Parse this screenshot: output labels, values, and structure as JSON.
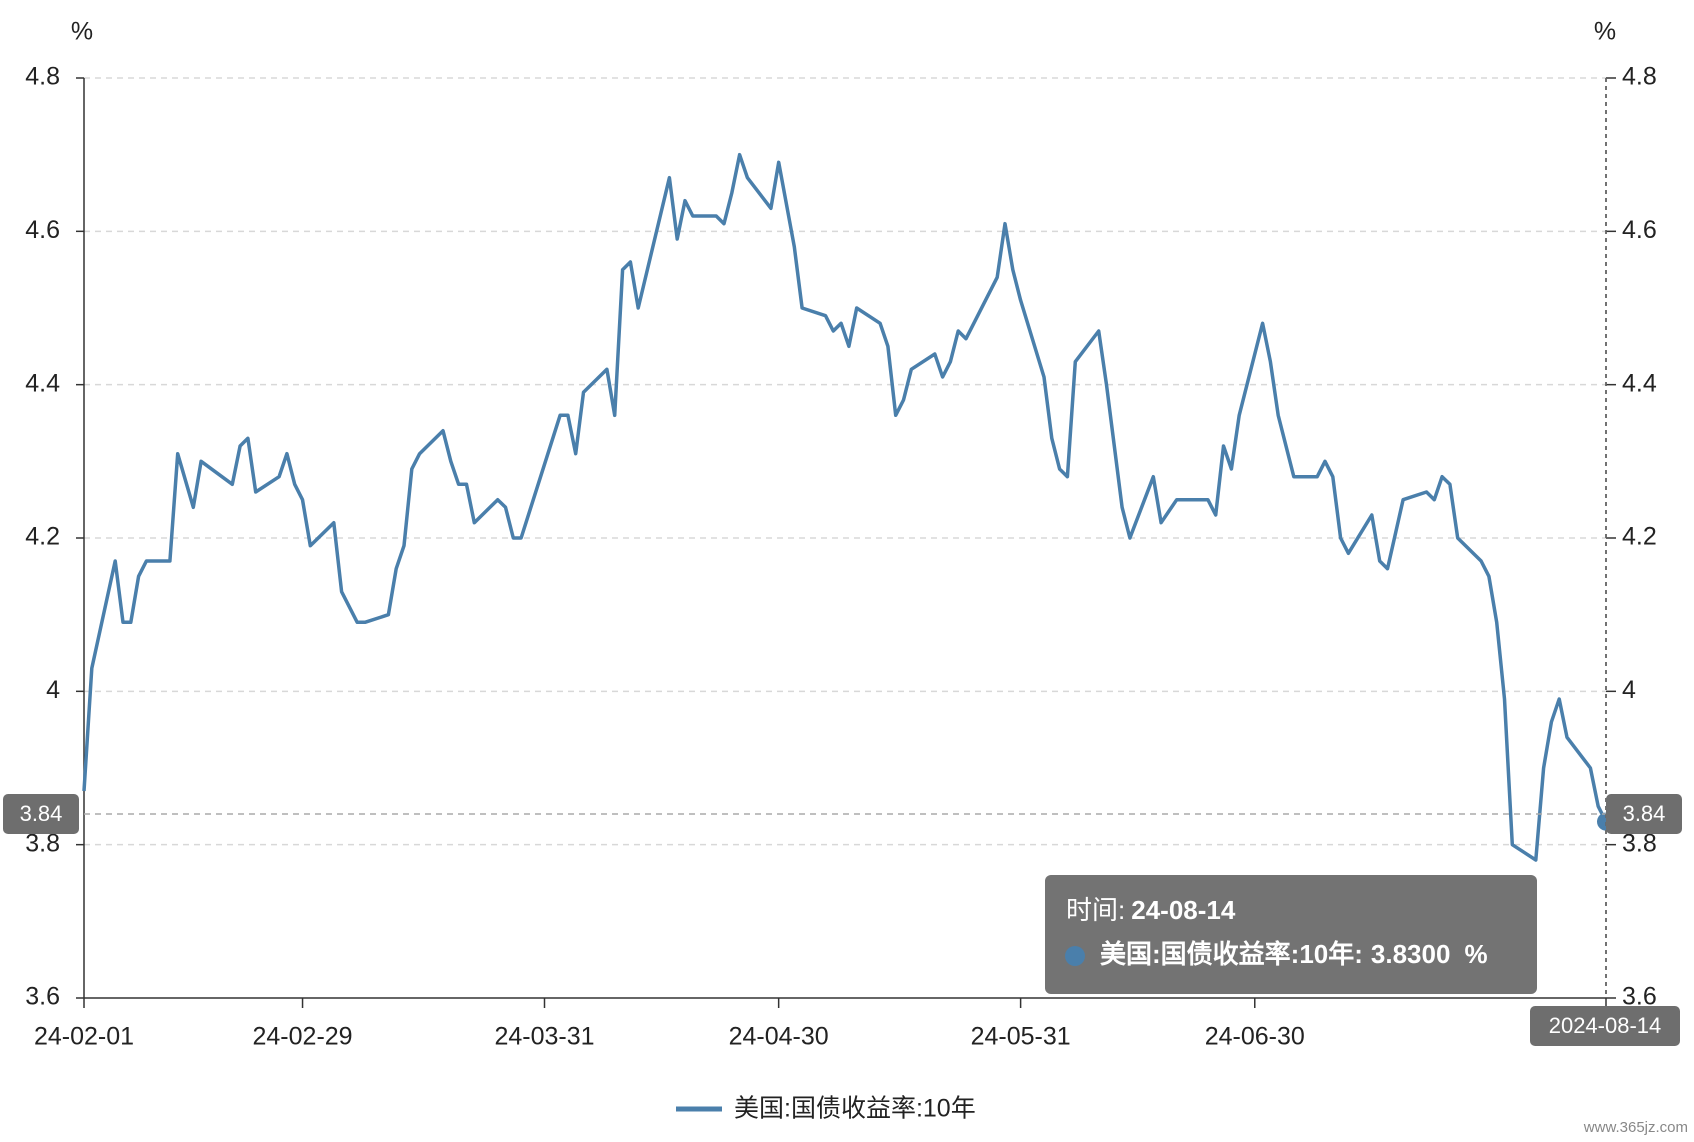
{
  "chart_data": {
    "type": "line",
    "y_unit": "%",
    "y2_unit": "%",
    "x": [
      "24-02-01",
      "24-02-02",
      "24-02-05",
      "24-02-06",
      "24-02-07",
      "24-02-08",
      "24-02-09",
      "24-02-12",
      "24-02-13",
      "24-02-15",
      "24-02-16",
      "24-02-20",
      "24-02-21",
      "24-02-22",
      "24-02-23",
      "24-02-26",
      "24-02-27",
      "24-02-28",
      "24-02-29",
      "24-03-01",
      "24-03-04",
      "24-03-05",
      "24-03-07",
      "24-03-08",
      "24-03-11",
      "24-03-12",
      "24-03-13",
      "24-03-14",
      "24-03-15",
      "24-03-18",
      "24-03-19",
      "24-03-20",
      "24-03-21",
      "24-03-22",
      "24-03-25",
      "24-03-26",
      "24-03-27",
      "24-03-28",
      "24-04-02",
      "24-04-03",
      "24-04-04",
      "24-04-05",
      "24-04-08",
      "24-04-09",
      "24-04-10",
      "24-04-11",
      "24-04-12",
      "24-04-16",
      "24-04-17",
      "24-04-18",
      "24-04-19",
      "24-04-22",
      "24-04-23",
      "24-04-24",
      "24-04-25",
      "24-04-26",
      "24-04-29",
      "24-04-30",
      "24-05-02",
      "24-05-03",
      "24-05-06",
      "24-05-07",
      "24-05-08",
      "24-05-09",
      "24-05-10",
      "24-05-13",
      "24-05-14",
      "24-05-15",
      "24-05-16",
      "24-05-17",
      "24-05-20",
      "24-05-21",
      "24-05-22",
      "24-05-23",
      "24-05-24",
      "24-05-28",
      "24-05-29",
      "24-05-30",
      "24-05-31",
      "24-06-03",
      "24-06-04",
      "24-06-05",
      "24-06-06",
      "24-06-07",
      "24-06-10",
      "24-06-11",
      "24-06-12",
      "24-06-13",
      "24-06-14",
      "24-06-17",
      "24-06-18",
      "24-06-20",
      "24-06-21",
      "24-06-24",
      "24-06-25",
      "24-06-26",
      "24-06-27",
      "24-06-28",
      "24-07-01",
      "24-07-02",
      "24-07-03",
      "24-07-05",
      "24-07-08",
      "24-07-09",
      "24-07-10",
      "24-07-11",
      "24-07-12",
      "24-07-15",
      "24-07-16",
      "24-07-17",
      "24-07-19",
      "24-07-22",
      "24-07-23",
      "24-07-24",
      "24-07-25",
      "24-07-26",
      "24-07-29",
      "24-07-30",
      "24-07-31",
      "24-08-01",
      "24-08-02",
      "24-08-05",
      "24-08-06",
      "24-08-07",
      "24-08-08",
      "24-08-09",
      "24-08-12",
      "24-08-13",
      "24-08-14"
    ],
    "series": [
      {
        "name": "美国:国债收益率:10年",
        "color": "#4a7fab",
        "values": [
          3.87,
          4.03,
          4.17,
          4.09,
          4.09,
          4.15,
          4.17,
          4.17,
          4.31,
          4.24,
          4.3,
          4.27,
          4.32,
          4.33,
          4.26,
          4.28,
          4.31,
          4.27,
          4.25,
          4.19,
          4.22,
          4.13,
          4.09,
          4.09,
          4.1,
          4.16,
          4.19,
          4.29,
          4.31,
          4.34,
          4.3,
          4.27,
          4.27,
          4.22,
          4.25,
          4.24,
          4.2,
          4.2,
          4.36,
          4.36,
          4.31,
          4.39,
          4.42,
          4.36,
          4.55,
          4.56,
          4.5,
          4.67,
          4.59,
          4.64,
          4.62,
          4.62,
          4.61,
          4.65,
          4.7,
          4.67,
          4.63,
          4.69,
          4.58,
          4.5,
          4.49,
          4.47,
          4.48,
          4.45,
          4.5,
          4.48,
          4.45,
          4.36,
          4.38,
          4.42,
          4.44,
          4.41,
          4.43,
          4.47,
          4.46,
          4.54,
          4.61,
          4.55,
          4.51,
          4.41,
          4.33,
          4.29,
          4.28,
          4.43,
          4.47,
          4.4,
          4.32,
          4.24,
          4.2,
          4.28,
          4.22,
          4.25,
          4.25,
          4.25,
          4.23,
          4.32,
          4.29,
          4.36,
          4.48,
          4.43,
          4.36,
          4.28,
          4.28,
          4.3,
          4.28,
          4.2,
          4.18,
          4.23,
          4.17,
          4.16,
          4.25,
          4.26,
          4.25,
          4.28,
          4.27,
          4.2,
          4.17,
          4.15,
          4.09,
          3.99,
          3.8,
          3.78,
          3.9,
          3.96,
          3.99,
          3.94,
          3.9,
          3.85,
          3.83
        ]
      }
    ],
    "xlim": [
      "24-02-01",
      "24-08-14"
    ],
    "xticks": [
      "24-02-01",
      "24-02-29",
      "24-03-31",
      "24-04-30",
      "24-05-31",
      "24-06-30",
      "24-08-14"
    ],
    "ylim": [
      3.6,
      4.8
    ],
    "yticks": [
      3.6,
      3.8,
      4,
      4.2,
      4.4,
      4.6,
      4.8
    ],
    "y2lim": [
      3.6,
      4.8
    ],
    "y2ticks": [
      3.6,
      3.8,
      4,
      4.2,
      4.4,
      4.6,
      4.8
    ],
    "grid": true,
    "crosshair": {
      "x": "2024-08-14",
      "y": 3.84
    },
    "tooltip": {
      "time_label": "时间:",
      "time": "24-08-14",
      "series_label": "美国:国债收益率:10年:",
      "value": "3.8300",
      "unit": "%"
    },
    "watermark": "www.365jz.com"
  }
}
